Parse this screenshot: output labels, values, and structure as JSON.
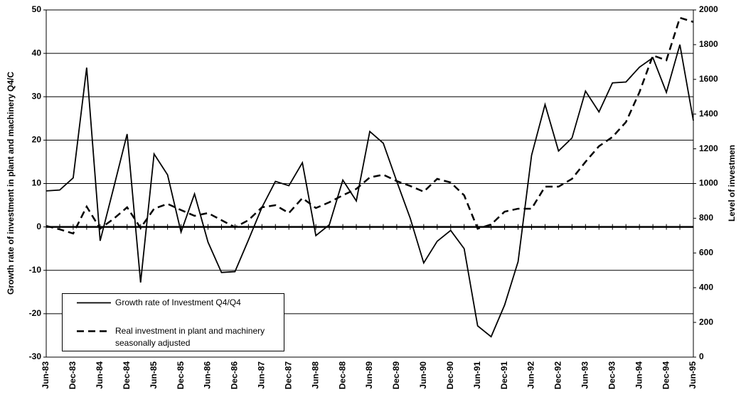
{
  "chart_data": {
    "type": "line",
    "y_label": "Growth rate of investment in plant and machinery Q4/C",
    "y2_label": "Level of investmen",
    "categories": [
      "Jun-83",
      null,
      "Dec-83",
      null,
      "Jun-84",
      null,
      "Dec-84",
      null,
      "Jun-85",
      null,
      "Dec-85",
      null,
      "Jun-86",
      null,
      "Dec-86",
      null,
      "Jun-87",
      null,
      "Dec-87",
      null,
      "Jun-88",
      null,
      "Dec-88",
      null,
      "Jun-89",
      null,
      "Dec-89",
      null,
      "Jun-90",
      null,
      "Dec-90",
      null,
      "Jun-91",
      null,
      "Dec-91",
      null,
      "Jun-92",
      null,
      "Dec-92",
      null,
      "Jun-93",
      null,
      "Dec-93",
      null,
      "Jun-94",
      null,
      "Dec-94",
      null,
      "Jun-95"
    ],
    "series": [
      {
        "name": "Growth rate of Investment Q4/Q4",
        "color": "#000000",
        "line_style": "solid",
        "values": [
          8.3,
          8.5,
          11.3,
          36.7,
          -3.2,
          9,
          21.4,
          -12.8,
          16.8,
          12,
          -1.2,
          7.6,
          -3.5,
          -10.5,
          -10.3,
          -3,
          4.5,
          10.5,
          9.5,
          14.8,
          -2,
          0.5,
          10.8,
          6,
          22,
          19.3,
          10.5,
          2,
          -8.3,
          -3.3,
          -0.8,
          -5,
          -22.8,
          -25.3,
          -18,
          -8,
          16.5,
          28.2,
          17.5,
          20.5,
          31.3,
          26.5,
          33.2,
          33.4,
          36.8,
          39,
          31,
          42,
          24.5
        ]
      },
      {
        "name": "Real investment in plant and machinery seasonally adjusted",
        "color": "#000000",
        "line_style": "dashed",
        "axis": "y2",
        "values": [
          756,
          736,
          712,
          867,
          740,
          797,
          863,
          744,
          855,
          883,
          847,
          814,
          830,
          789,
          748,
          789,
          863,
          875,
          830,
          916,
          859,
          892,
          932,
          969,
          1035,
          1051,
          1014,
          986,
          953,
          1027,
          1006,
          932,
          740,
          764,
          838,
          855,
          855,
          982,
          982,
          1027,
          1125,
          1215,
          1268,
          1354,
          1526,
          1738,
          1710,
          1955,
          1931
        ]
      }
    ],
    "ylim": [
      -30,
      50
    ],
    "yticks": [
      -30,
      -20,
      -10,
      0,
      10,
      20,
      30,
      40,
      50
    ],
    "y2lim": [
      0,
      2000
    ],
    "y2ticks": [
      0,
      200,
      400,
      600,
      800,
      1000,
      1200,
      1400,
      1600,
      1800,
      2000
    ],
    "grid": true
  }
}
